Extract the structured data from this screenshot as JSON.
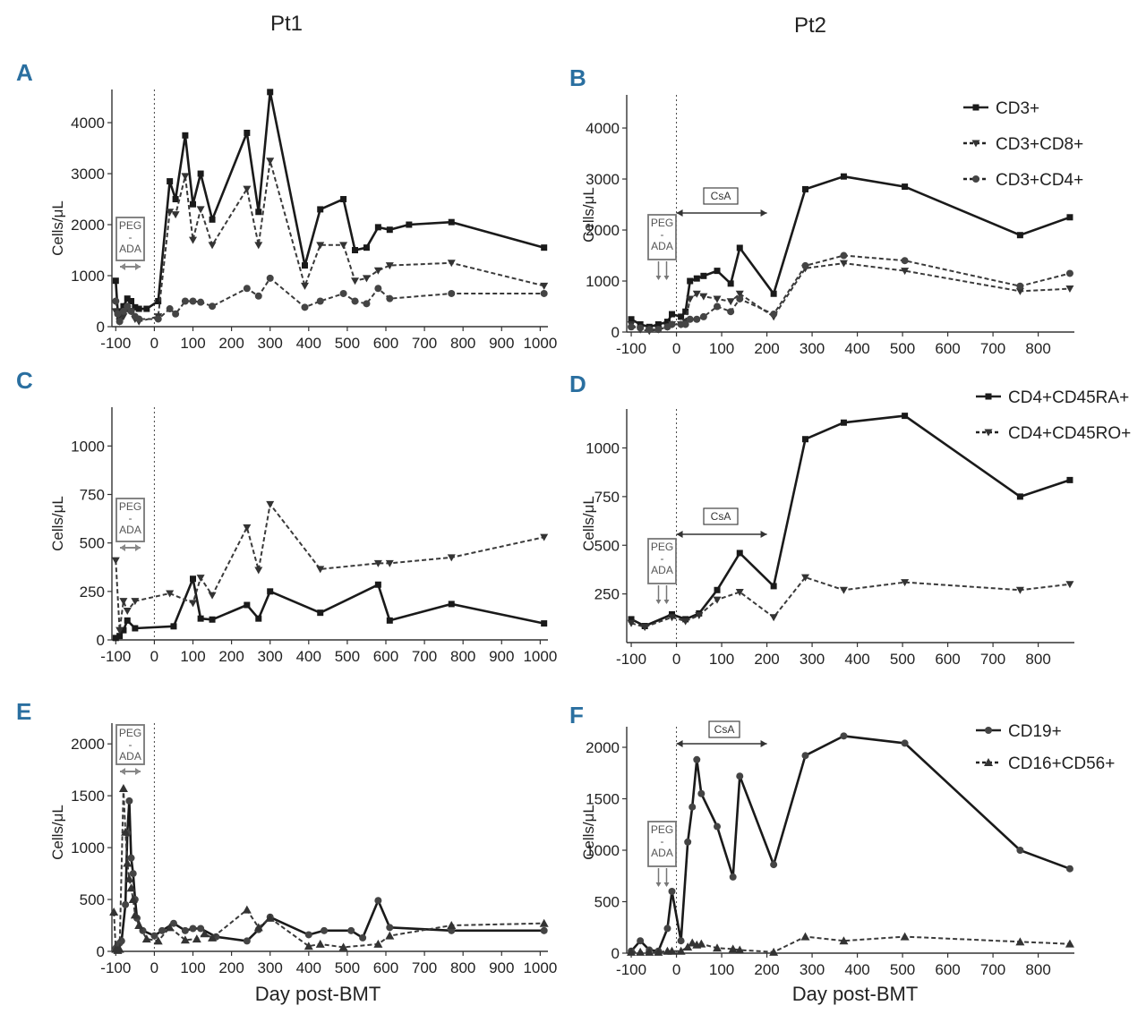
{
  "figure": {
    "col_titles": [
      "Pt1",
      "Pt2"
    ],
    "xlabel": "Day post-BMT",
    "ylabel": "Cells/μL",
    "peg_ada": [
      "PEG",
      "-",
      "ADA"
    ],
    "csa": "CsA"
  },
  "chart_data": [
    {
      "panel": "A",
      "type": "line",
      "title": "",
      "xlabel": "",
      "ylabel": "Cells/μL",
      "xlim": [
        -110,
        1020
      ],
      "ylim": [
        0,
        4650
      ],
      "xticks": [
        -100,
        0,
        100,
        200,
        300,
        400,
        500,
        600,
        700,
        800,
        900,
        1000
      ],
      "yticks": [
        0,
        1000,
        2000,
        3000,
        4000
      ],
      "legend": [],
      "series": [
        {
          "name": "CD3+",
          "style": "solid",
          "marker": "square",
          "x": [
            -100,
            -95,
            -90,
            -80,
            -70,
            -60,
            -50,
            -40,
            -20,
            10,
            40,
            55,
            80,
            100,
            120,
            150,
            240,
            270,
            300,
            390,
            430,
            490,
            520,
            550,
            580,
            610,
            660,
            770,
            1010
          ],
          "y": [
            900,
            300,
            200,
            400,
            550,
            500,
            380,
            350,
            350,
            500,
            2850,
            2500,
            3750,
            2400,
            3000,
            2100,
            3800,
            2250,
            4600,
            1200,
            2300,
            2500,
            1500,
            1550,
            1950,
            1900,
            2000,
            2050,
            1550
          ]
        },
        {
          "name": "CD3+CD8+",
          "style": "dashed",
          "marker": "triangle-down",
          "x": [
            -100,
            -90,
            -80,
            -70,
            -60,
            -50,
            -40,
            10,
            40,
            55,
            80,
            100,
            120,
            150,
            240,
            270,
            300,
            390,
            430,
            490,
            520,
            550,
            580,
            610,
            770,
            1010
          ],
          "y": [
            300,
            100,
            200,
            350,
            300,
            150,
            100,
            200,
            2250,
            2200,
            2950,
            1700,
            2300,
            1600,
            2700,
            1600,
            3250,
            800,
            1600,
            1600,
            900,
            950,
            1100,
            1200,
            1250,
            800
          ]
        },
        {
          "name": "CD3+CD4+",
          "style": "dashed",
          "marker": "circle",
          "x": [
            -100,
            -95,
            -90,
            -80,
            -70,
            -60,
            -50,
            -40,
            10,
            40,
            55,
            80,
            100,
            120,
            150,
            240,
            270,
            300,
            390,
            430,
            490,
            520,
            550,
            580,
            610,
            770,
            1010
          ],
          "y": [
            500,
            250,
            100,
            300,
            400,
            300,
            200,
            150,
            150,
            350,
            250,
            500,
            500,
            480,
            400,
            750,
            600,
            950,
            380,
            500,
            650,
            500,
            450,
            750,
            550,
            650,
            650
          ]
        }
      ]
    },
    {
      "panel": "B",
      "type": "line",
      "title": "",
      "xlabel": "",
      "ylabel": "Cells/μL",
      "xlim": [
        -110,
        880
      ],
      "ylim": [
        0,
        4650
      ],
      "xticks": [
        -100,
        0,
        100,
        200,
        300,
        400,
        500,
        600,
        700,
        800
      ],
      "yticks": [
        0,
        1000,
        2000,
        3000,
        4000
      ],
      "legend": [
        "CD3+",
        "CD3+CD8+",
        "CD3+CD4+"
      ],
      "legend_position": "top-right",
      "series": [
        {
          "name": "CD3+",
          "style": "solid",
          "marker": "square",
          "x": [
            -100,
            -80,
            -60,
            -40,
            -20,
            -10,
            10,
            20,
            30,
            45,
            60,
            90,
            120,
            140,
            215,
            285,
            370,
            505,
            760,
            870
          ],
          "y": [
            250,
            150,
            100,
            150,
            200,
            350,
            300,
            400,
            1000,
            1050,
            1100,
            1200,
            950,
            1650,
            750,
            2800,
            3050,
            2850,
            1900,
            2250
          ]
        },
        {
          "name": "CD3+CD8+",
          "style": "dashed",
          "marker": "triangle-down",
          "x": [
            -100,
            -80,
            -60,
            -40,
            -20,
            -10,
            10,
            20,
            30,
            45,
            60,
            90,
            120,
            140,
            215,
            285,
            370,
            505,
            760,
            870
          ],
          "y": [
            150,
            50,
            20,
            50,
            100,
            150,
            150,
            200,
            650,
            750,
            700,
            650,
            600,
            750,
            300,
            1250,
            1350,
            1200,
            800,
            850
          ]
        },
        {
          "name": "CD3+CD4+",
          "style": "dashed",
          "marker": "circle",
          "x": [
            -100,
            -80,
            -60,
            -40,
            -20,
            -10,
            10,
            20,
            30,
            45,
            60,
            90,
            120,
            140,
            215,
            285,
            370,
            505,
            760,
            870
          ],
          "y": [
            100,
            80,
            50,
            50,
            100,
            150,
            150,
            150,
            250,
            250,
            300,
            500,
            400,
            650,
            350,
            1300,
            1500,
            1400,
            900,
            1150
          ]
        }
      ]
    },
    {
      "panel": "C",
      "type": "line",
      "title": "",
      "xlabel": "",
      "ylabel": "Cells/μL",
      "xlim": [
        -110,
        1020
      ],
      "ylim": [
        0,
        1200
      ],
      "xticks": [
        -100,
        0,
        100,
        200,
        300,
        400,
        500,
        600,
        700,
        800,
        900,
        1000
      ],
      "yticks": [
        0,
        250,
        500,
        750,
        1000
      ],
      "legend": [],
      "series": [
        {
          "name": "CD4+CD45RA+",
          "style": "solid",
          "marker": "square",
          "x": [
            -100,
            -90,
            -80,
            -70,
            -50,
            50,
            100,
            120,
            150,
            240,
            270,
            300,
            430,
            580,
            610,
            770,
            1010
          ],
          "y": [
            10,
            20,
            50,
            100,
            60,
            70,
            315,
            110,
            105,
            180,
            110,
            250,
            140,
            285,
            100,
            185,
            85
          ]
        },
        {
          "name": "CD4+CD45RO+",
          "style": "dashed",
          "marker": "triangle-down",
          "x": [
            -100,
            -90,
            -80,
            -70,
            -50,
            40,
            100,
            120,
            150,
            240,
            270,
            300,
            430,
            580,
            610,
            770,
            1010
          ],
          "y": [
            410,
            50,
            200,
            150,
            200,
            240,
            190,
            320,
            230,
            580,
            360,
            700,
            365,
            395,
            395,
            425,
            530
          ]
        }
      ]
    },
    {
      "panel": "D",
      "type": "line",
      "title": "",
      "xlabel": "",
      "ylabel": "Cells/μL",
      "xlim": [
        -110,
        880
      ],
      "ylim": [
        0,
        1200
      ],
      "xticks": [
        -100,
        0,
        100,
        200,
        300,
        400,
        500,
        600,
        700,
        800
      ],
      "yticks": [
        250,
        500,
        750,
        1000
      ],
      "legend": [
        "CD4+CD45RA+",
        "CD4+CD45RO+"
      ],
      "legend_position": "top-right",
      "series": [
        {
          "name": "CD4+CD45RA+",
          "style": "solid",
          "marker": "square",
          "x": [
            -100,
            -70,
            -10,
            20,
            50,
            90,
            140,
            215,
            285,
            370,
            505,
            760,
            870
          ],
          "y": [
            120,
            85,
            145,
            120,
            150,
            270,
            460,
            290,
            1045,
            1130,
            1165,
            750,
            835
          ]
        },
        {
          "name": "CD4+CD45RO+",
          "style": "dashed",
          "marker": "triangle-down",
          "x": [
            -100,
            -70,
            -10,
            20,
            50,
            90,
            140,
            215,
            285,
            370,
            505,
            760,
            870
          ],
          "y": [
            100,
            80,
            130,
            110,
            140,
            220,
            260,
            130,
            335,
            270,
            310,
            270,
            300
          ]
        }
      ]
    },
    {
      "panel": "E",
      "type": "line",
      "title": "",
      "xlabel": "Day post-BMT",
      "ylabel": "Cells/μL",
      "xlim": [
        -110,
        1020
      ],
      "ylim": [
        0,
        2200
      ],
      "xticks": [
        -100,
        0,
        100,
        200,
        300,
        400,
        500,
        600,
        700,
        800,
        900,
        1000
      ],
      "yticks": [
        0,
        500,
        1000,
        1500,
        2000
      ],
      "legend": [],
      "series": [
        {
          "name": "CD19+",
          "style": "solid",
          "marker": "circle",
          "x": [
            -100,
            -95,
            -90,
            -85,
            -75,
            -70,
            -65,
            -60,
            -55,
            -50,
            -45,
            -30,
            0,
            20,
            50,
            80,
            100,
            120,
            160,
            240,
            270,
            300,
            400,
            440,
            510,
            540,
            580,
            610,
            770,
            1010
          ],
          "y": [
            30,
            60,
            80,
            100,
            450,
            1140,
            1450,
            900,
            750,
            500,
            320,
            200,
            150,
            200,
            270,
            200,
            220,
            220,
            140,
            100,
            210,
            330,
            160,
            200,
            200,
            130,
            490,
            230,
            200,
            200
          ]
        },
        {
          "name": "CD16+CD56+",
          "style": "dashed",
          "marker": "triangle-up",
          "x": [
            -105,
            -100,
            -95,
            -90,
            -80,
            -75,
            -70,
            -65,
            -60,
            -55,
            -50,
            -40,
            -20,
            10,
            40,
            80,
            110,
            130,
            150,
            240,
            270,
            300,
            400,
            430,
            490,
            580,
            610,
            770,
            1010
          ],
          "y": [
            380,
            20,
            10,
            20,
            1570,
            1150,
            850,
            700,
            610,
            500,
            350,
            250,
            120,
            100,
            230,
            110,
            120,
            170,
            130,
            400,
            230,
            320,
            50,
            70,
            40,
            70,
            150,
            250,
            270
          ]
        }
      ]
    },
    {
      "panel": "F",
      "type": "line",
      "title": "",
      "xlabel": "Day post-BMT",
      "ylabel": "Cells/μL",
      "xlim": [
        -110,
        880
      ],
      "ylim": [
        0,
        2200
      ],
      "xticks": [
        -100,
        0,
        100,
        200,
        300,
        400,
        500,
        600,
        700,
        800
      ],
      "yticks": [
        0,
        500,
        1000,
        1500,
        2000
      ],
      "legend": [
        "CD19+",
        "CD16+CD56+"
      ],
      "legend_position": "top-right",
      "series": [
        {
          "name": "CD19+",
          "style": "solid",
          "marker": "circle",
          "x": [
            -100,
            -80,
            -60,
            -40,
            -20,
            -10,
            10,
            25,
            35,
            45,
            55,
            90,
            125,
            140,
            215,
            285,
            370,
            505,
            760,
            870
          ],
          "y": [
            20,
            120,
            30,
            20,
            240,
            600,
            120,
            1080,
            1420,
            1880,
            1550,
            1230,
            740,
            1720,
            860,
            1920,
            2110,
            2040,
            1000,
            820
          ]
        },
        {
          "name": "CD16+CD56+",
          "style": "dashed",
          "marker": "triangle-up",
          "x": [
            -100,
            -80,
            -60,
            -40,
            -20,
            -10,
            10,
            25,
            35,
            45,
            55,
            90,
            125,
            140,
            215,
            285,
            370,
            505,
            760,
            870
          ],
          "y": [
            10,
            10,
            10,
            10,
            20,
            20,
            20,
            60,
            100,
            80,
            90,
            50,
            40,
            30,
            10,
            160,
            120,
            160,
            110,
            90
          ]
        }
      ]
    }
  ]
}
